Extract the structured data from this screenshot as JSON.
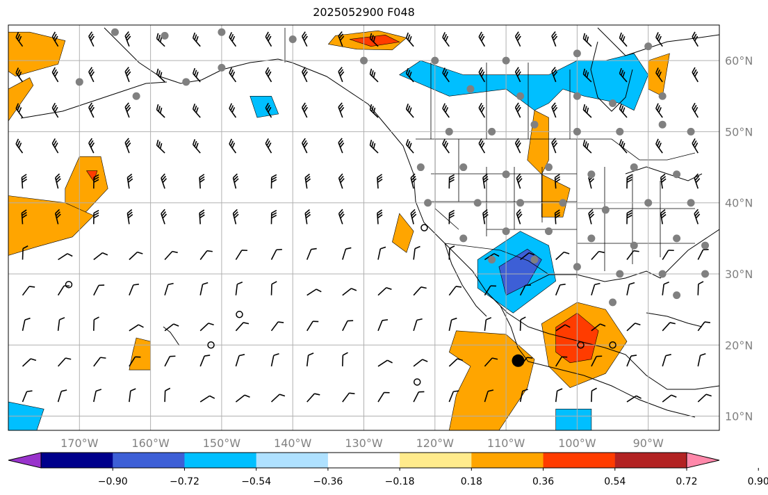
{
  "title": "2025052900 F048",
  "map": {
    "lon_range": [
      -180,
      -80
    ],
    "lat_range": [
      8,
      65
    ],
    "lon_ticks": [
      {
        "value": -170,
        "label": "170°W"
      },
      {
        "value": -160,
        "label": "160°W"
      },
      {
        "value": -150,
        "label": "150°W"
      },
      {
        "value": -140,
        "label": "140°W"
      },
      {
        "value": -130,
        "label": "130°W"
      },
      {
        "value": -120,
        "label": "120°W"
      },
      {
        "value": -110,
        "label": "110°W"
      },
      {
        "value": -100,
        "label": "100°W"
      },
      {
        "value": -90,
        "label": "90°W"
      }
    ],
    "lat_ticks": [
      {
        "value": 60,
        "label": "60°N"
      },
      {
        "value": 50,
        "label": "50°N"
      },
      {
        "value": 40,
        "label": "40°N"
      },
      {
        "value": 30,
        "label": "30°N"
      },
      {
        "value": 20,
        "label": "20°N"
      },
      {
        "value": 10,
        "label": "10°N"
      }
    ],
    "grid": true,
    "colors": {
      "gridline": "#b0b0b0",
      "land_outline": "#000000",
      "station_dot": "#808080"
    },
    "shaded_regions": [
      {
        "name": "alaska-gulf-positive",
        "color": "#ffa500",
        "points": [
          [
            -134,
            63.5
          ],
          [
            -128,
            64.2
          ],
          [
            -124,
            63.2
          ],
          [
            -126,
            61.5
          ],
          [
            -131,
            61.6
          ],
          [
            -135,
            62.3
          ]
        ]
      },
      {
        "name": "alaska-gulf-core",
        "color": "#ff3c00",
        "points": [
          [
            -132,
            63.0
          ],
          [
            -127,
            63.6
          ],
          [
            -125,
            62.6
          ],
          [
            -129,
            62.0
          ]
        ]
      },
      {
        "name": "bering-positive",
        "color": "#ffa500",
        "points": [
          [
            -177,
            64
          ],
          [
            -172,
            62.8
          ],
          [
            -173,
            59.5
          ],
          [
            -179,
            57.8
          ],
          [
            -180,
            58.5
          ],
          [
            -180,
            64
          ]
        ]
      },
      {
        "name": "aleutian-positive",
        "color": "#ffa500",
        "points": [
          [
            -180,
            56
          ],
          [
            -177,
            57.6
          ],
          [
            -176.5,
            56.5
          ],
          [
            -180,
            51.5
          ]
        ]
      },
      {
        "name": "central-pacific-positive",
        "color": "#ffa500",
        "points": [
          [
            -170,
            46.5
          ],
          [
            -167,
            46.5
          ],
          [
            -166,
            42
          ],
          [
            -169,
            38.8
          ],
          [
            -172,
            37.6
          ],
          [
            -172,
            42
          ]
        ]
      },
      {
        "name": "central-pacific-core",
        "color": "#ff3c00",
        "points": [
          [
            -169,
            44.5
          ],
          [
            -167.5,
            44.5
          ],
          [
            -168,
            43
          ]
        ]
      },
      {
        "name": "east-pacific-positive",
        "color": "#ffa500",
        "points": [
          [
            -180,
            41
          ],
          [
            -172,
            40
          ],
          [
            -168,
            38.2
          ],
          [
            -171,
            35.2
          ],
          [
            -176,
            33.8
          ],
          [
            -180,
            32.6
          ]
        ]
      },
      {
        "name": "hawaii-positive",
        "color": "#ffa500",
        "points": [
          [
            -162,
            21
          ],
          [
            -160,
            20.5
          ],
          [
            -160,
            16.5
          ],
          [
            -163,
            16.5
          ],
          [
            -162.5,
            19
          ]
        ]
      },
      {
        "name": "tropical-pacific-positive",
        "color": "#ffa500",
        "points": [
          [
            -117,
            22
          ],
          [
            -110,
            21.5
          ],
          [
            -106,
            18
          ],
          [
            -107,
            14
          ],
          [
            -109,
            11
          ],
          [
            -111,
            8
          ],
          [
            -118,
            8
          ],
          [
            -117,
            13
          ],
          [
            -115,
            17
          ],
          [
            -118,
            19
          ]
        ]
      },
      {
        "name": "mexico-gulf-positive",
        "color": "#ffa500",
        "points": [
          [
            -105,
            23
          ],
          [
            -100,
            26
          ],
          [
            -96,
            25
          ],
          [
            -93,
            20.5
          ],
          [
            -96,
            16
          ],
          [
            -101,
            14
          ],
          [
            -104,
            17
          ]
        ]
      },
      {
        "name": "mexico-gulf-core",
        "color": "#ff3c00",
        "points": [
          [
            -103,
            22.5
          ],
          [
            -100,
            24.5
          ],
          [
            -97,
            22
          ],
          [
            -98,
            18
          ],
          [
            -101,
            17.5
          ],
          [
            -103,
            19
          ]
        ]
      },
      {
        "name": "us-plains-positive",
        "color": "#ffa500",
        "points": [
          [
            -106,
            53
          ],
          [
            -104,
            52
          ],
          [
            -104,
            46
          ],
          [
            -105,
            44
          ],
          [
            -107,
            46
          ]
        ]
      },
      {
        "name": "us-central-positive",
        "color": "#ffa500",
        "points": [
          [
            -105,
            44
          ],
          [
            -101,
            42
          ],
          [
            -102,
            38
          ],
          [
            -105,
            38
          ]
        ]
      },
      {
        "name": "canada-east-positive",
        "color": "#ffa500",
        "points": [
          [
            -90,
            60
          ],
          [
            -87,
            61
          ],
          [
            -88,
            55
          ],
          [
            -90,
            56
          ]
        ]
      },
      {
        "name": "west-coast-positive",
        "color": "#ffa500",
        "points": [
          [
            -125,
            38.5
          ],
          [
            -123,
            36
          ],
          [
            -124,
            33
          ],
          [
            -126,
            34.5
          ]
        ]
      },
      {
        "name": "canada-negative",
        "color": "#00bfff",
        "points": [
          [
            -125,
            58
          ],
          [
            -118,
            55
          ],
          [
            -110,
            56
          ],
          [
            -106,
            53
          ],
          [
            -104,
            54
          ],
          [
            -102,
            56
          ],
          [
            -99,
            55
          ],
          [
            -94,
            54
          ],
          [
            -92,
            53
          ],
          [
            -90,
            58
          ],
          [
            -92,
            61
          ],
          [
            -96,
            60
          ],
          [
            -100,
            60
          ],
          [
            -104,
            58
          ],
          [
            -110,
            58
          ],
          [
            -116,
            58
          ],
          [
            -122,
            60
          ]
        ]
      },
      {
        "name": "mexico-negative",
        "color": "#00bfff",
        "points": [
          [
            -114,
            32
          ],
          [
            -108,
            36
          ],
          [
            -104,
            34
          ],
          [
            -103,
            29
          ],
          [
            -109,
            24.5
          ],
          [
            -114,
            28
          ]
        ]
      },
      {
        "name": "mexico-negative-core",
        "color": "#3d5fd6",
        "points": [
          [
            -111,
            31
          ],
          [
            -107,
            33.5
          ],
          [
            -105,
            32
          ],
          [
            -107,
            28.5
          ],
          [
            -110,
            27
          ]
        ]
      },
      {
        "name": "pacific-negative-small",
        "color": "#00bfff",
        "points": [
          [
            -146,
            55
          ],
          [
            -143,
            55
          ],
          [
            -142,
            52.5
          ],
          [
            -145,
            52
          ]
        ]
      },
      {
        "name": "south-negative",
        "color": "#00bfff",
        "points": [
          [
            -180,
            12
          ],
          [
            -175,
            11
          ],
          [
            -176,
            8
          ],
          [
            -180,
            8
          ]
        ]
      },
      {
        "name": "south-negative-2",
        "color": "#00bfff",
        "points": [
          [
            -103,
            11
          ],
          [
            -98,
            11
          ],
          [
            -98,
            8
          ],
          [
            -103,
            8
          ]
        ]
      }
    ],
    "markers": [
      {
        "lon": -171.5,
        "lat": 28.5,
        "type": "open"
      },
      {
        "lon": -147.5,
        "lat": 24.3,
        "type": "open"
      },
      {
        "lon": -151.5,
        "lat": 20.0,
        "type": "open"
      },
      {
        "lon": -122.5,
        "lat": 14.8,
        "type": "open"
      },
      {
        "lon": -99.5,
        "lat": 20.0,
        "type": "open"
      },
      {
        "lon": -95.0,
        "lat": 20.0,
        "type": "open"
      },
      {
        "lon": -121.5,
        "lat": 36.5,
        "type": "open"
      },
      {
        "lon": -108.3,
        "lat": 17.8,
        "type": "filled"
      }
    ]
  },
  "colorbar": {
    "colors": [
      "#9933cc",
      "#00008b",
      "#3d5fd6",
      "#00bfff",
      "#afe1ff",
      "#ffffff",
      "#ffeb8c",
      "#ffa500",
      "#ff3c00",
      "#b22222",
      "#ff88aa"
    ],
    "tick_labels": [
      "−0.90",
      "−0.72",
      "−0.54",
      "−0.36",
      "−0.18",
      "0.18",
      "0.36",
      "0.54",
      "0.72",
      "0.90"
    ]
  }
}
